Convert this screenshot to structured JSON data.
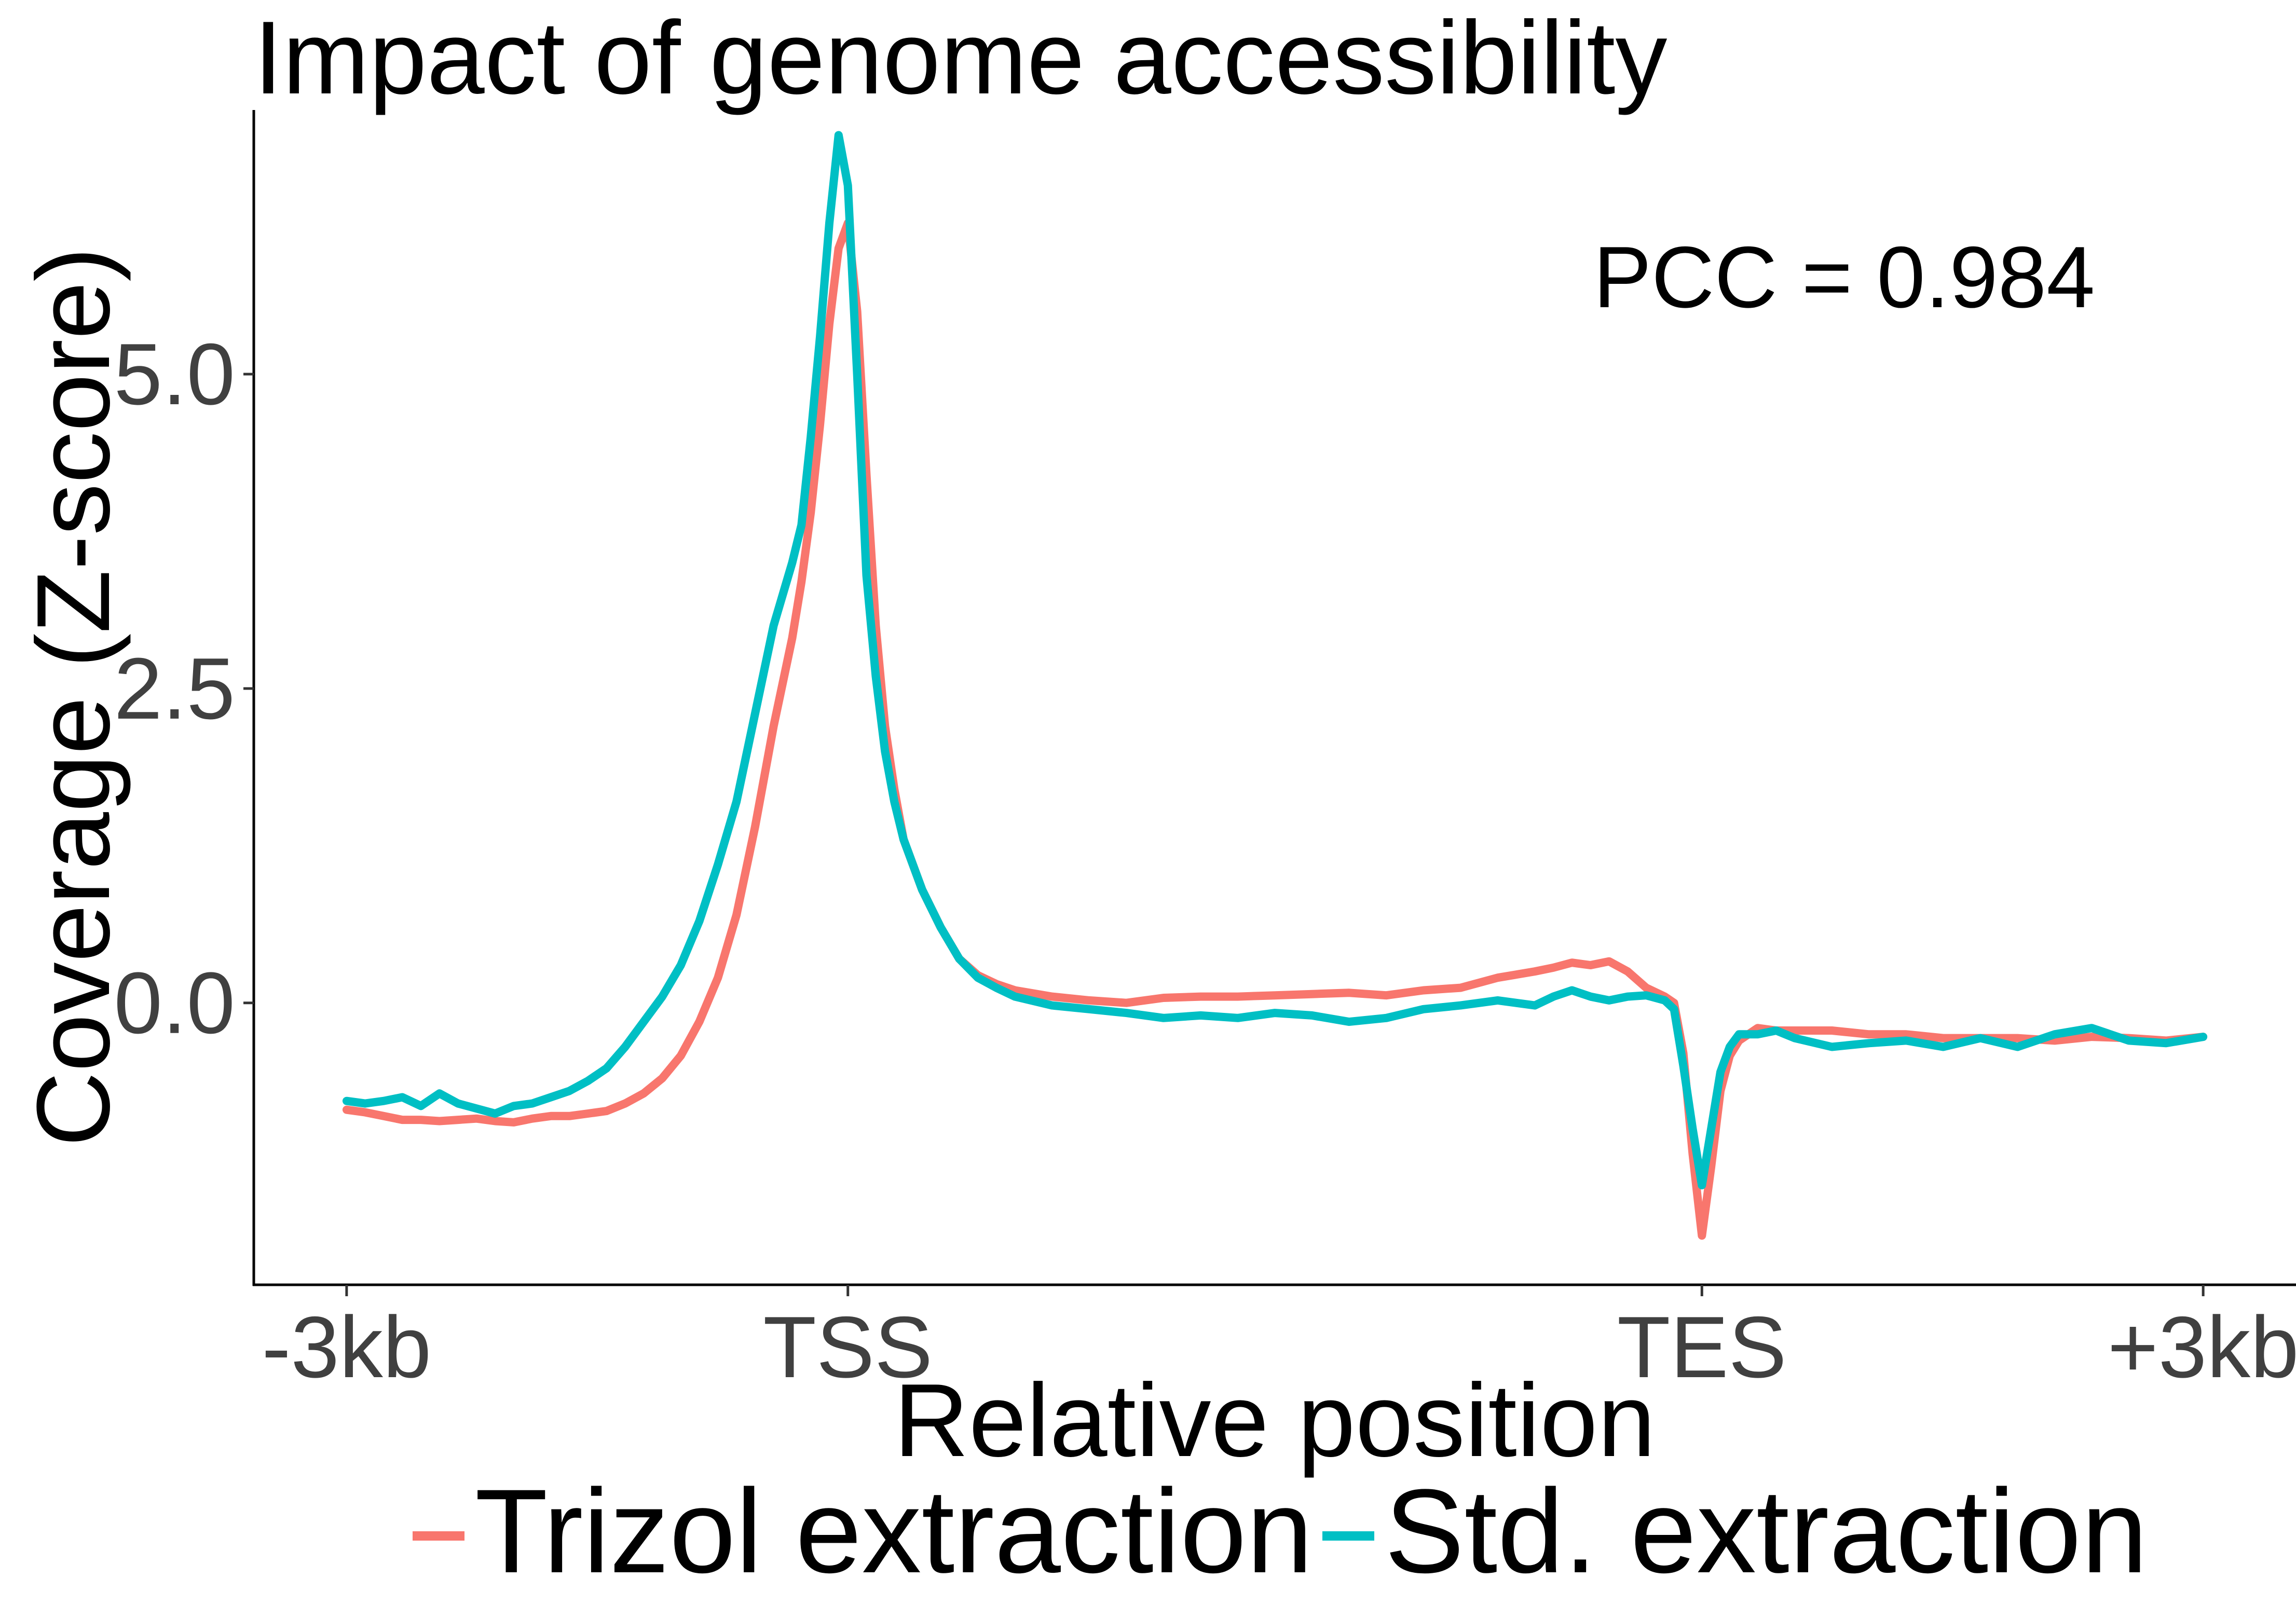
{
  "chart_data": {
    "type": "line",
    "title": "Impact of genome accessibility",
    "xlabel": "Relative position",
    "ylabel": "Coverage (Z-score)",
    "x_ticks": [
      {
        "label": "-3kb",
        "pos": 0
      },
      {
        "label": "TSS",
        "pos": 27
      },
      {
        "label": "TES",
        "pos": 73
      },
      {
        "label": "+3kb",
        "pos": 100
      }
    ],
    "y_ticks": [
      {
        "label": "0.0",
        "value": 0
      },
      {
        "label": "2.5",
        "value": 2.5
      },
      {
        "label": "5.0",
        "value": 5
      }
    ],
    "xlim": [
      -5,
      105
    ],
    "ylim": [
      -2.25,
      7.1
    ],
    "grid": false,
    "legend_position": "bottom",
    "annotation": "PCC = 0.984",
    "series": [
      {
        "name": "Trizol extraction",
        "color": "#F8766D",
        "x": [
          0,
          1,
          2,
          3,
          4,
          5,
          6,
          7,
          8,
          9,
          10,
          11,
          12,
          13,
          14,
          15,
          16,
          17,
          18,
          19,
          20,
          21,
          22,
          23,
          24,
          24.5,
          25,
          25.5,
          26,
          26.5,
          27,
          27.5,
          28,
          28.5,
          29,
          29.5,
          30,
          31,
          32,
          33,
          34,
          35,
          36,
          38,
          40,
          42,
          44,
          46,
          48,
          50,
          52,
          54,
          56,
          58,
          60,
          62,
          64,
          65,
          66,
          67,
          68,
          69,
          70,
          71,
          71.5,
          72,
          72.5,
          73,
          73.5,
          74,
          74.5,
          75,
          76,
          77,
          78,
          80,
          82,
          84,
          86,
          88,
          90,
          92,
          94,
          96,
          98,
          100
        ],
        "y": [
          -0.85,
          -0.87,
          -0.9,
          -0.93,
          -0.93,
          -0.94,
          -0.93,
          -0.92,
          -0.94,
          -0.95,
          -0.92,
          -0.9,
          -0.9,
          -0.88,
          -0.86,
          -0.8,
          -0.72,
          -0.6,
          -0.42,
          -0.15,
          0.2,
          0.7,
          1.4,
          2.2,
          2.9,
          3.35,
          3.9,
          4.6,
          5.4,
          6.0,
          6.2,
          5.5,
          4.2,
          3.0,
          2.2,
          1.7,
          1.3,
          0.9,
          0.6,
          0.35,
          0.22,
          0.15,
          0.1,
          0.05,
          0.02,
          0.0,
          0.04,
          0.05,
          0.05,
          0.06,
          0.07,
          0.08,
          0.06,
          0.1,
          0.12,
          0.2,
          0.25,
          0.28,
          0.32,
          0.3,
          0.33,
          0.25,
          0.12,
          0.05,
          0.0,
          -0.4,
          -1.2,
          -1.85,
          -1.3,
          -0.7,
          -0.42,
          -0.3,
          -0.2,
          -0.22,
          -0.22,
          -0.22,
          -0.25,
          -0.25,
          -0.28,
          -0.28,
          -0.28,
          -0.3,
          -0.27,
          -0.28,
          -0.3,
          -0.27
        ]
      },
      {
        "name": "Std. extraction",
        "color": "#00BFC4",
        "x": [
          0,
          1,
          2,
          3,
          4,
          5,
          6,
          7,
          8,
          9,
          10,
          11,
          12,
          13,
          14,
          15,
          16,
          17,
          18,
          19,
          20,
          21,
          22,
          23,
          24,
          24.5,
          25,
          25.5,
          26,
          26.5,
          27,
          27.5,
          28,
          28.5,
          29,
          29.5,
          30,
          31,
          32,
          33,
          34,
          35,
          36,
          38,
          40,
          42,
          44,
          46,
          48,
          50,
          52,
          54,
          56,
          58,
          60,
          62,
          64,
          65,
          66,
          67,
          68,
          69,
          70,
          71,
          71.5,
          72,
          72.5,
          73,
          73.5,
          74,
          74.5,
          75,
          76,
          77,
          78,
          80,
          82,
          84,
          86,
          88,
          90,
          92,
          94,
          96,
          98,
          100
        ],
        "y": [
          -0.78,
          -0.8,
          -0.78,
          -0.75,
          -0.82,
          -0.72,
          -0.8,
          -0.84,
          -0.88,
          -0.82,
          -0.8,
          -0.75,
          -0.7,
          -0.62,
          -0.52,
          -0.35,
          -0.15,
          0.05,
          0.3,
          0.65,
          1.1,
          1.6,
          2.3,
          3.0,
          3.5,
          3.8,
          4.5,
          5.3,
          6.2,
          6.9,
          6.5,
          5.0,
          3.4,
          2.6,
          2.0,
          1.6,
          1.3,
          0.9,
          0.6,
          0.35,
          0.2,
          0.12,
          0.05,
          -0.02,
          -0.05,
          -0.08,
          -0.12,
          -0.1,
          -0.12,
          -0.08,
          -0.1,
          -0.15,
          -0.12,
          -0.05,
          -0.02,
          0.02,
          -0.02,
          0.05,
          0.1,
          0.05,
          0.02,
          0.05,
          0.06,
          0.02,
          -0.05,
          -0.5,
          -1.0,
          -1.45,
          -1.0,
          -0.55,
          -0.35,
          -0.25,
          -0.25,
          -0.22,
          -0.28,
          -0.35,
          -0.32,
          -0.3,
          -0.35,
          -0.28,
          -0.35,
          -0.25,
          -0.2,
          -0.3,
          -0.32,
          -0.27
        ]
      }
    ]
  }
}
